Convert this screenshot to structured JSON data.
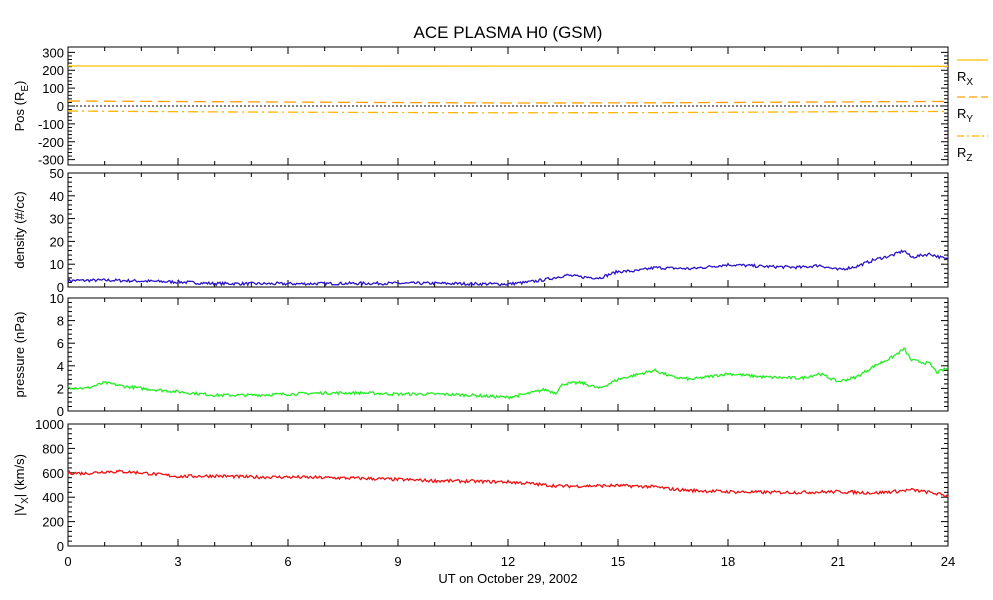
{
  "chart_data": {
    "title": "ACE PLASMA H0 (GSM)",
    "xlabel": "UT on October 29, 2002",
    "x_ticks": [
      0,
      3,
      6,
      9,
      12,
      15,
      18,
      21,
      24
    ],
    "x_range": [
      0,
      24
    ],
    "panels": [
      {
        "id": "position",
        "type": "line",
        "ylabel_main": "Pos (R",
        "ylabel_sub": "E",
        "ylabel_end": ")",
        "ylim": [
          -330,
          330
        ],
        "y_ticks": [
          -300,
          -200,
          -100,
          0,
          100,
          200,
          300
        ],
        "zero_line": true,
        "series": [
          {
            "name": "R",
            "subscript": "X",
            "color": "#ffc000",
            "dash": "solid",
            "points": [
              [
                0,
                224
              ],
              [
                6,
                224
              ],
              [
                12,
                223
              ],
              [
                18,
                223
              ],
              [
                24,
                222
              ]
            ]
          },
          {
            "name": "R",
            "subscript": "Y",
            "color": "#ffa000",
            "dash": "dashed",
            "points": [
              [
                0,
                28
              ],
              [
                4,
                24
              ],
              [
                8,
                20
              ],
              [
                12,
                17
              ],
              [
                16,
                18
              ],
              [
                20,
                22
              ],
              [
                24,
                26
              ]
            ]
          },
          {
            "name": "R",
            "subscript": "Z",
            "color": "#ffb400",
            "dash": "dashdot",
            "points": [
              [
                0,
                -28
              ],
              [
                4,
                -33
              ],
              [
                8,
                -36
              ],
              [
                12,
                -38
              ],
              [
                16,
                -37
              ],
              [
                20,
                -33
              ],
              [
                24,
                -30
              ]
            ]
          }
        ]
      },
      {
        "id": "density",
        "type": "line",
        "ylabel": "density (#/cc)",
        "ylim": [
          0,
          50
        ],
        "y_ticks": [
          0,
          10,
          20,
          30,
          40,
          50
        ],
        "series": [
          {
            "name": "density",
            "color": "#2b14c8",
            "points": [
              [
                0,
                2.8
              ],
              [
                1,
                3.0
              ],
              [
                2,
                2.6
              ],
              [
                3,
                2.2
              ],
              [
                4,
                1.5
              ],
              [
                6,
                1.4
              ],
              [
                8,
                1.6
              ],
              [
                10,
                1.6
              ],
              [
                11,
                1.4
              ],
              [
                12,
                1.3
              ],
              [
                12.5,
                2.0
              ],
              [
                13,
                3.2
              ],
              [
                13.6,
                5.2
              ],
              [
                14,
                4.4
              ],
              [
                14.5,
                4.0
              ],
              [
                15,
                6.8
              ],
              [
                15.5,
                7.0
              ],
              [
                16,
                8.5
              ],
              [
                17,
                8.0
              ],
              [
                18,
                9.8
              ],
              [
                19,
                9.0
              ],
              [
                20,
                8.6
              ],
              [
                20.5,
                9.5
              ],
              [
                21,
                7.5
              ],
              [
                21.5,
                9.0
              ],
              [
                22,
                12.0
              ],
              [
                22.5,
                14.0
              ],
              [
                22.8,
                16.0
              ],
              [
                23,
                13.0
              ],
              [
                23.5,
                14.5
              ],
              [
                24,
                12.0
              ]
            ]
          }
        ]
      },
      {
        "id": "pressure",
        "type": "line",
        "ylabel": "pressure (nPa)",
        "ylim": [
          0,
          10
        ],
        "y_ticks": [
          0,
          2,
          4,
          6,
          8,
          10
        ],
        "series": [
          {
            "name": "pressure",
            "color": "#22ee22",
            "points": [
              [
                0,
                2.1
              ],
              [
                0.5,
                2.0
              ],
              [
                1,
                2.5
              ],
              [
                1.5,
                2.2
              ],
              [
                2,
                2.0
              ],
              [
                3,
                1.7
              ],
              [
                4,
                1.4
              ],
              [
                5,
                1.4
              ],
              [
                6,
                1.5
              ],
              [
                7,
                1.6
              ],
              [
                8,
                1.6
              ],
              [
                9,
                1.5
              ],
              [
                10,
                1.5
              ],
              [
                11,
                1.4
              ],
              [
                12,
                1.2
              ],
              [
                12.5,
                1.5
              ],
              [
                13,
                1.9
              ],
              [
                13.3,
                1.6
              ],
              [
                13.5,
                2.4
              ],
              [
                14,
                2.5
              ],
              [
                14.5,
                2.0
              ],
              [
                15,
                2.8
              ],
              [
                15.5,
                3.2
              ],
              [
                16,
                3.6
              ],
              [
                16.5,
                3.0
              ],
              [
                17,
                2.8
              ],
              [
                18,
                3.3
              ],
              [
                19,
                3.0
              ],
              [
                20,
                2.9
              ],
              [
                20.5,
                3.3
              ],
              [
                21,
                2.6
              ],
              [
                21.5,
                3.0
              ],
              [
                22,
                4.0
              ],
              [
                22.5,
                4.8
              ],
              [
                22.8,
                5.5
              ],
              [
                23,
                4.5
              ],
              [
                23.5,
                4.2
              ],
              [
                23.7,
                3.4
              ],
              [
                24,
                3.8
              ]
            ]
          }
        ]
      },
      {
        "id": "velocity",
        "type": "line",
        "ylabel_main": "|V",
        "ylabel_sub": "X",
        "ylabel_end": "| (km/s)",
        "ylim": [
          0,
          1000
        ],
        "y_ticks": [
          0,
          200,
          400,
          600,
          800,
          1000
        ],
        "series": [
          {
            "name": "|Vx|",
            "color": "#ee1111",
            "points": [
              [
                0,
                600
              ],
              [
                0.5,
                595
              ],
              [
                1,
                610
              ],
              [
                1.5,
                610
              ],
              [
                2,
                600
              ],
              [
                3,
                570
              ],
              [
                4,
                575
              ],
              [
                5,
                565
              ],
              [
                6,
                565
              ],
              [
                7,
                560
              ],
              [
                8,
                555
              ],
              [
                9,
                545
              ],
              [
                10,
                535
              ],
              [
                11,
                530
              ],
              [
                12,
                525
              ],
              [
                12.5,
                515
              ],
              [
                13,
                500
              ],
              [
                13.5,
                490
              ],
              [
                14,
                492
              ],
              [
                15,
                495
              ],
              [
                16,
                485
              ],
              [
                16.5,
                465
              ],
              [
                17,
                455
              ],
              [
                18,
                445
              ],
              [
                19,
                440
              ],
              [
                20,
                440
              ],
              [
                21,
                445
              ],
              [
                22,
                435
              ],
              [
                22.5,
                445
              ],
              [
                23,
                460
              ],
              [
                23.5,
                440
              ],
              [
                24,
                410
              ]
            ]
          }
        ]
      }
    ]
  }
}
